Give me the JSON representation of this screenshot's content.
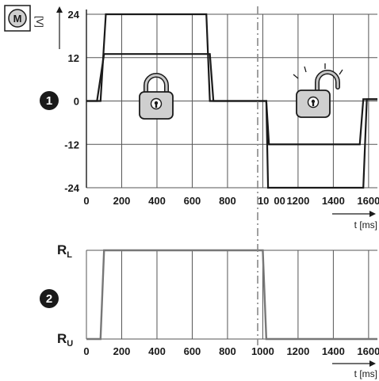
{
  "motor_label": "M",
  "voltage_unit": "[V]",
  "chart_data": [
    {
      "type": "line",
      "badge": "1",
      "y_ticks": [
        "24",
        "12",
        "0",
        "-12",
        "-24"
      ],
      "x_ticks": [
        "0",
        "200",
        "400",
        "600",
        "800",
        "10",
        "00",
        "1200",
        "1400",
        "1600"
      ],
      "x_label": "t [ms]",
      "ylim": [
        -24,
        24
      ],
      "xlim": [
        0,
        1650
      ],
      "grid": true,
      "series": [
        {
          "x": [
            0,
            80,
            110,
            650,
            680,
            700,
            1020,
            1030,
            1570,
            1590,
            1650
          ],
          "y": [
            0,
            0,
            24,
            24,
            24,
            0,
            0,
            -24,
            -24,
            0.5,
            0.5
          ]
        },
        {
          "x": [
            0,
            60,
            100,
            680,
            700,
            720,
            1020,
            1035,
            1550,
            1570,
            1650
          ],
          "y": [
            0,
            0,
            13,
            13,
            13,
            0,
            0,
            -12,
            -12,
            0.5,
            0.5
          ]
        }
      ],
      "annotations": [
        "padlock-closed",
        "padlock-open"
      ]
    },
    {
      "type": "line",
      "badge": "2",
      "y_labels": [
        {
          "main": "R",
          "sub": "L"
        },
        {
          "main": "R",
          "sub": "U"
        }
      ],
      "x_ticks": [
        "0",
        "200",
        "400",
        "600",
        "800",
        "1000",
        "1200",
        "1400",
        "1600"
      ],
      "x_label": "t [ms]",
      "xlim": [
        0,
        1650
      ],
      "grid": true,
      "series": [
        {
          "x": [
            0,
            80,
            100,
            1000,
            1020,
            1650
          ],
          "y": [
            0,
            0,
            1,
            1,
            0,
            0
          ]
        }
      ]
    }
  ]
}
